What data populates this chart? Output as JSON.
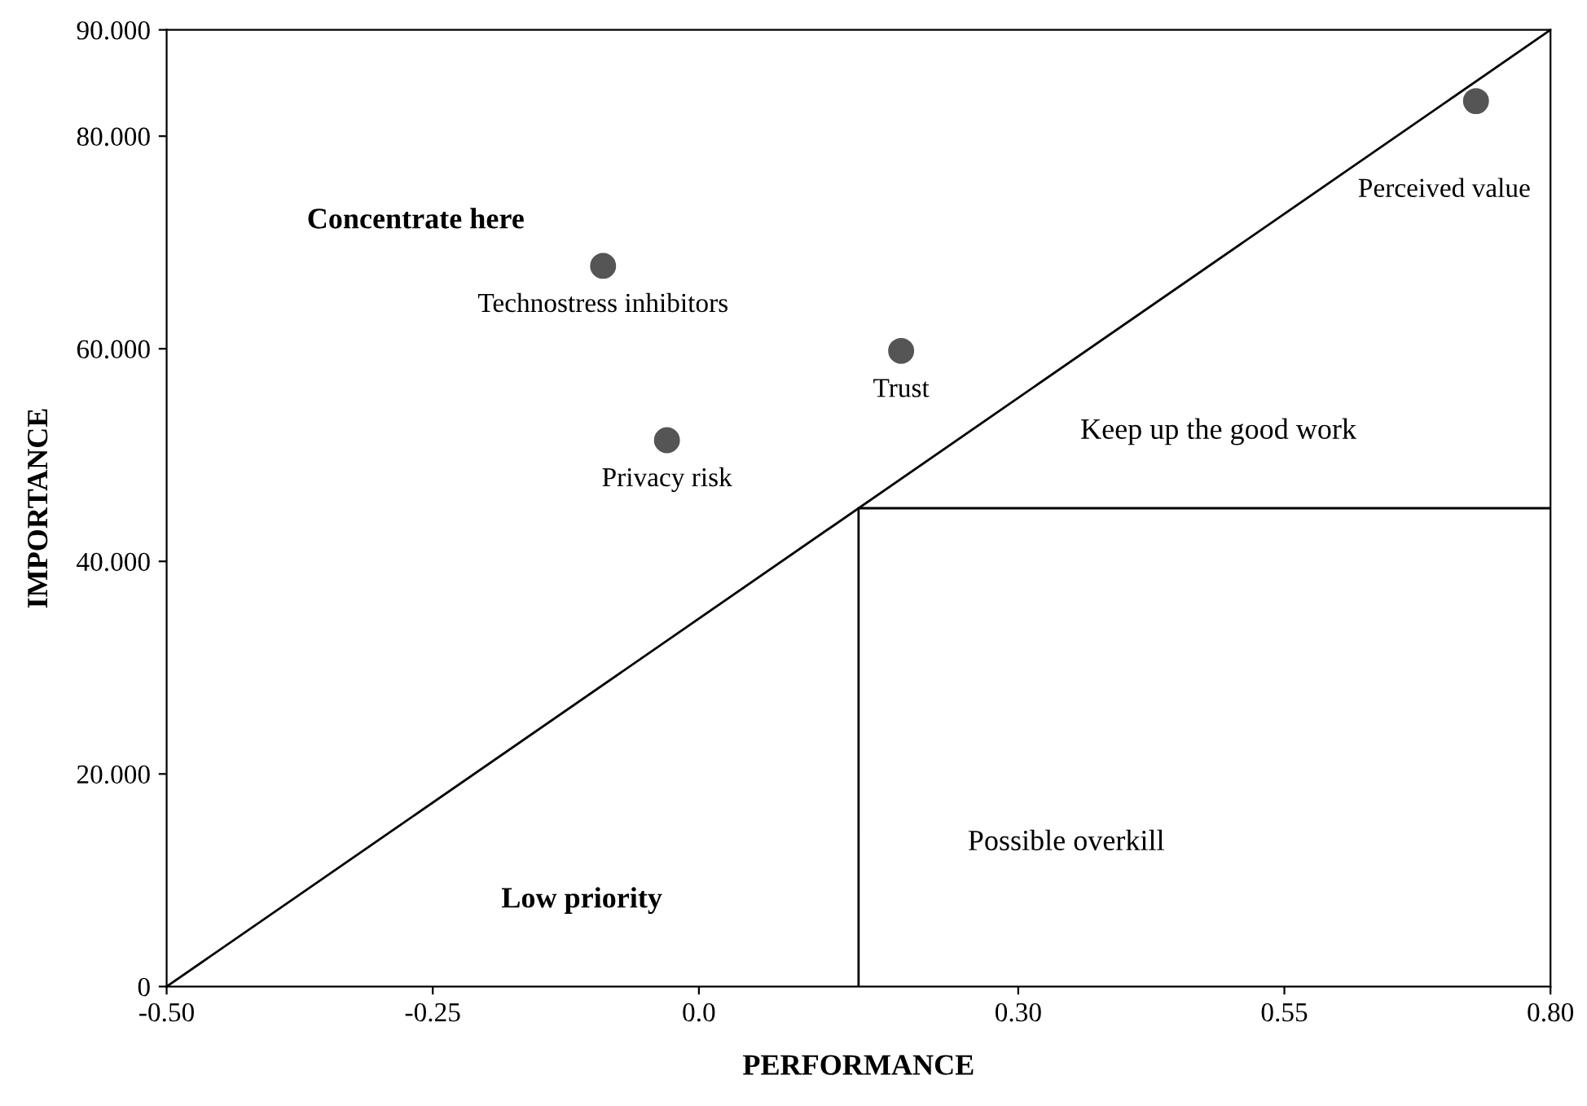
{
  "chart_data": {
    "type": "scatter",
    "xlabel": "PERFORMANCE",
    "ylabel": "IMPORTANCE",
    "xlim": [
      -0.5,
      0.8
    ],
    "ylim": [
      0,
      90
    ],
    "xticks": [
      {
        "value": -0.5,
        "label": "-0.50"
      },
      {
        "value": -0.25,
        "label": "-0.25"
      },
      {
        "value": 0,
        "label": "0.0"
      },
      {
        "value": 0.3,
        "label": "0.30"
      },
      {
        "value": 0.55,
        "label": "0.55"
      },
      {
        "value": 0.8,
        "label": "0.80"
      }
    ],
    "yticks": [
      0,
      {
        "value": 20,
        "label": "20.000"
      },
      {
        "value": 40,
        "label": "40.000"
      },
      {
        "value": 60,
        "label": "60.000"
      },
      {
        "value": 80,
        "label": "80.000"
      },
      {
        "value": 90,
        "label": "90.000"
      }
    ],
    "grid": false,
    "legend": false,
    "marker": "circle",
    "series": [
      {
        "name": "Technostress inhibitors",
        "color": "#555555",
        "x": [
          -0.09
        ],
        "values": [
          67.8
        ]
      },
      {
        "name": "Trust",
        "color": "#555555",
        "x": [
          0.19
        ],
        "values": [
          59.8
        ]
      },
      {
        "name": "Privacy risk",
        "color": "#555555",
        "x": [
          -0.03
        ],
        "values": [
          51.4
        ]
      },
      {
        "name": "Perceived value",
        "color": "#555555",
        "x": [
          0.73
        ],
        "values": [
          83.3
        ]
      },
      {
        "type": "line",
        "color": "#000000",
        "marker": "none",
        "x": [
          -0.5,
          0.8
        ],
        "values": [
          0,
          90
        ]
      },
      {
        "type": "line",
        "color": "#000000",
        "marker": "none",
        "x": [
          0.15,
          0.15,
          0.8
        ],
        "values": [
          0,
          45,
          45
        ]
      }
    ],
    "annotations": [
      "Concentrate here",
      "Keep up the good work",
      "Possible overkill",
      "Low priority"
    ]
  }
}
